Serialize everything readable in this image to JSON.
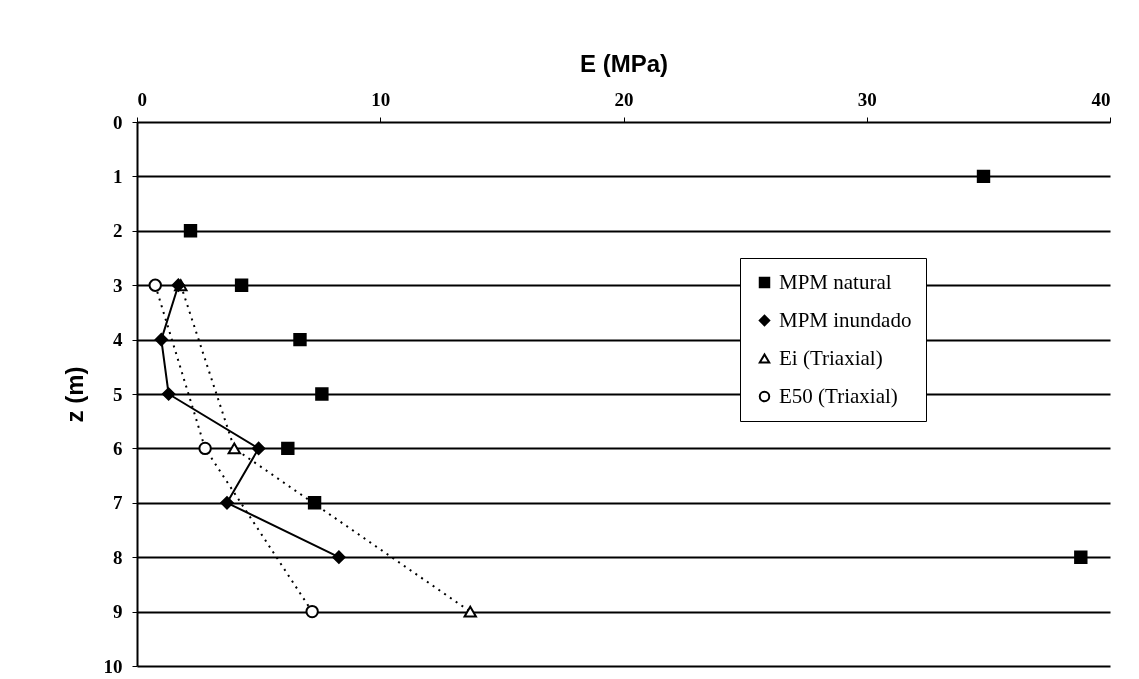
{
  "chart_data": {
    "type": "line",
    "xlabel": "E (MPa)",
    "ylabel": "z (m)",
    "xlim": [
      0,
      40
    ],
    "xticks": [
      0,
      10,
      20,
      30,
      40
    ],
    "ylim": [
      10,
      0
    ],
    "yticks": [
      0,
      1,
      2,
      3,
      4,
      5,
      6,
      7,
      8,
      9,
      10
    ],
    "grid": "y",
    "legend": "right",
    "series": [
      {
        "name": "MPM natural",
        "type": "scatter",
        "marker": "square",
        "color": "#000000",
        "x": [
          34.8,
          2.2,
          4.3,
          6.7,
          7.6,
          6.2,
          7.3,
          38.8
        ],
        "values": [
          1,
          2,
          3,
          4,
          5,
          6,
          7,
          8
        ]
      },
      {
        "name": "MPM inundado",
        "marker": "diamond",
        "line_style": "solid",
        "color": "#000000",
        "x": [
          1.7,
          1.0,
          1.3,
          5.0,
          3.7,
          8.3
        ],
        "values": [
          3,
          4,
          5,
          6,
          7,
          8
        ]
      },
      {
        "name": "Ei (Triaxial)",
        "marker": "triangle",
        "line_style": "dotted",
        "color": "#000000",
        "x": [
          1.8,
          4.0,
          13.7
        ],
        "values": [
          3,
          6,
          9
        ]
      },
      {
        "name": "E50 (Triaxial)",
        "marker": "circle",
        "line_style": "dotted",
        "color": "#000000",
        "x": [
          0.75,
          2.8,
          7.2
        ],
        "values": [
          3,
          6,
          9
        ]
      }
    ]
  }
}
